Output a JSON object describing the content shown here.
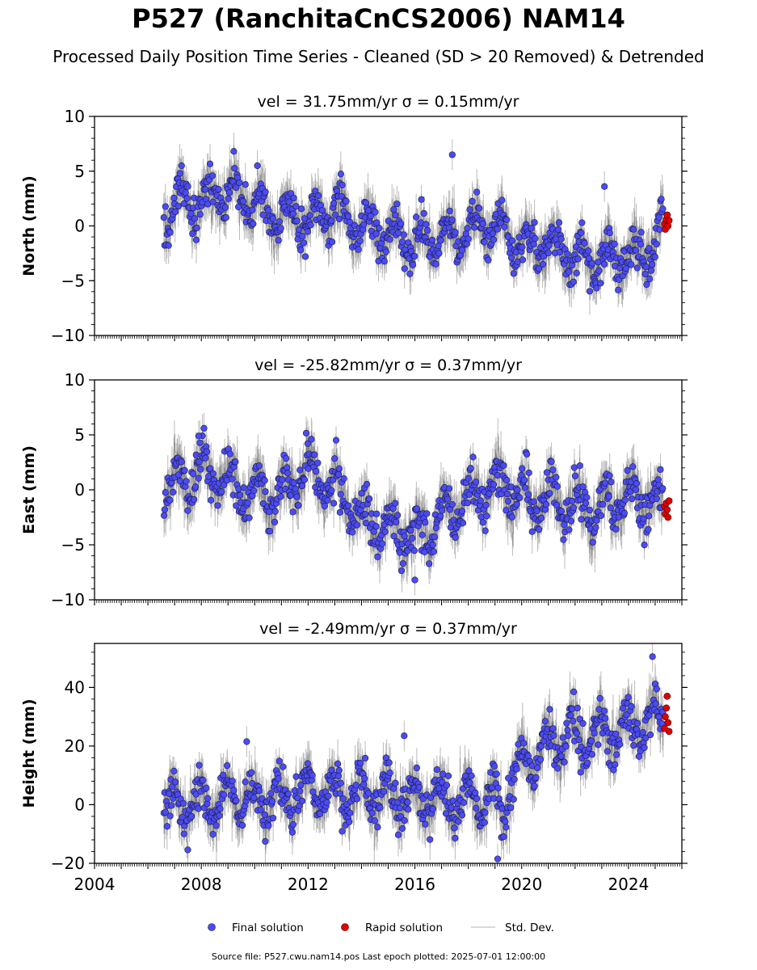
{
  "title": "P527 (RanchitaCnCS2006) NAM14",
  "subtitle": "Processed Daily Position Time Series - Cleaned (SD > 20 Removed) & Detrended",
  "source_text": "Source file: P527.cwu.nam14.pos  Last epoch plotted: 2025-07-01 12:00:00",
  "colors": {
    "final": "#4b4bf5",
    "final_edge": "#1a1a3a",
    "rapid": "#e00000",
    "stddev": "#bbbbbb",
    "stddev_dark": "#555555"
  },
  "legend": {
    "final": "Final solution",
    "rapid": "Rapid solution",
    "stddev": "Std. Dev."
  },
  "chart_data": [
    {
      "type": "scatter",
      "component": "north",
      "title": "vel = 31.75mm/yr   σ = 0.15mm/yr",
      "ylabel": "North (mm)",
      "xlim": [
        2004.0,
        2026.0
      ],
      "ylim": [
        -10,
        10
      ],
      "yticks": [
        -10,
        -5,
        0,
        5,
        10
      ],
      "ytick_labels": [
        "−10",
        "−5",
        "0",
        "5",
        "10"
      ],
      "xticks": [
        2004,
        2008,
        2012,
        2016,
        2020,
        2024
      ],
      "show_xtick_labels": false,
      "final_trend": [
        [
          2006.6,
          1.0
        ],
        [
          2007.2,
          2.3
        ],
        [
          2008.0,
          2.0
        ],
        [
          2009.0,
          3.0
        ],
        [
          2010.0,
          1.8
        ],
        [
          2011.0,
          0.8
        ],
        [
          2012.0,
          0.6
        ],
        [
          2013.0,
          1.5
        ],
        [
          2014.0,
          0.0
        ],
        [
          2015.0,
          -0.5
        ],
        [
          2016.0,
          -1.5
        ],
        [
          2017.0,
          -1.0
        ],
        [
          2018.0,
          -0.5
        ],
        [
          2019.0,
          0.3
        ],
        [
          2020.0,
          -1.8
        ],
        [
          2021.0,
          -2.0
        ],
        [
          2022.0,
          -2.8
        ],
        [
          2023.0,
          -3.0
        ],
        [
          2024.0,
          -3.3
        ],
        [
          2025.0,
          -1.5
        ],
        [
          2025.3,
          0.0
        ]
      ],
      "seasonal_amplitude": 2.0,
      "outliers": [
        [
          2017.4,
          6.5
        ],
        [
          2023.1,
          3.6
        ],
        [
          2011.9,
          -2.8
        ],
        [
          2010.1,
          5.5
        ],
        [
          2007.2,
          4.8
        ]
      ],
      "rapid": [
        [
          2025.35,
          0.2
        ],
        [
          2025.38,
          -0.3
        ],
        [
          2025.42,
          0.6
        ],
        [
          2025.45,
          1.0
        ],
        [
          2025.48,
          0.0
        ],
        [
          2025.52,
          0.5
        ]
      ]
    },
    {
      "type": "scatter",
      "component": "east",
      "title": "vel = -25.82mm/yr   σ = 0.37mm/yr",
      "ylabel": "East (mm)",
      "xlim": [
        2004.0,
        2026.0
      ],
      "ylim": [
        -10,
        10
      ],
      "yticks": [
        -10,
        -5,
        0,
        5,
        10
      ],
      "ytick_labels": [
        "−10",
        "−5",
        "0",
        "5",
        "10"
      ],
      "xticks": [
        2004,
        2008,
        2012,
        2016,
        2020,
        2024
      ],
      "show_xtick_labels": false,
      "final_trend": [
        [
          2006.6,
          0.5
        ],
        [
          2008.0,
          1.5
        ],
        [
          2009.0,
          1.0
        ],
        [
          2010.0,
          -0.5
        ],
        [
          2011.0,
          -0.5
        ],
        [
          2012.0,
          2.0
        ],
        [
          2013.0,
          0.0
        ],
        [
          2014.0,
          -2.5
        ],
        [
          2015.0,
          -3.5
        ],
        [
          2016.0,
          -4.5
        ],
        [
          2017.0,
          -2.5
        ],
        [
          2018.0,
          -0.5
        ],
        [
          2019.0,
          0.5
        ],
        [
          2020.0,
          -0.5
        ],
        [
          2021.0,
          -1.0
        ],
        [
          2022.0,
          -1.5
        ],
        [
          2023.0,
          -2.0
        ],
        [
          2024.0,
          -0.5
        ],
        [
          2025.3,
          -1.2
        ]
      ],
      "seasonal_amplitude": 2.2,
      "outliers": [
        [
          2008.1,
          5.6
        ],
        [
          2016.0,
          -8.2
        ],
        [
          2007.9,
          4.9
        ]
      ],
      "rapid": [
        [
          2025.35,
          -1.5
        ],
        [
          2025.38,
          -2.2
        ],
        [
          2025.42,
          -1.2
        ],
        [
          2025.45,
          -1.8
        ],
        [
          2025.48,
          -2.5
        ],
        [
          2025.52,
          -1.0
        ]
      ]
    },
    {
      "type": "scatter",
      "component": "height",
      "title": "vel = -2.49mm/yr   σ = 0.37mm/yr",
      "ylabel": "Height (mm)",
      "xlim": [
        2004.0,
        2026.0
      ],
      "ylim": [
        -20,
        55
      ],
      "yticks": [
        -20,
        0,
        20,
        40
      ],
      "ytick_labels": [
        "−20",
        "0",
        "20",
        "40"
      ],
      "xticks": [
        2004,
        2008,
        2012,
        2016,
        2020,
        2024
      ],
      "xtick_labels": [
        "2004",
        "2008",
        "2012",
        "2016",
        "2020",
        "2024"
      ],
      "show_xtick_labels": true,
      "final_trend": [
        [
          2006.6,
          0.0
        ],
        [
          2008.0,
          2.0
        ],
        [
          2010.0,
          1.0
        ],
        [
          2012.0,
          4.0
        ],
        [
          2014.0,
          3.0
        ],
        [
          2016.0,
          2.0
        ],
        [
          2018.0,
          0.0
        ],
        [
          2019.0,
          2.0
        ],
        [
          2019.3,
          0.0
        ],
        [
          2020.0,
          14.0
        ],
        [
          2021.0,
          20.0
        ],
        [
          2022.0,
          24.0
        ],
        [
          2023.0,
          23.0
        ],
        [
          2024.0,
          26.0
        ],
        [
          2025.3,
          30.0
        ]
      ],
      "seasonal_amplitude": 8.0,
      "outliers": [
        [
          2024.9,
          50.5
        ],
        [
          2009.7,
          21.5
        ],
        [
          2015.6,
          23.5
        ],
        [
          2019.1,
          -18.5
        ]
      ],
      "rapid": [
        [
          2025.35,
          26.0
        ],
        [
          2025.38,
          30.0
        ],
        [
          2025.42,
          33.0
        ],
        [
          2025.45,
          37.0
        ],
        [
          2025.48,
          28.0
        ],
        [
          2025.52,
          25.0
        ]
      ]
    }
  ]
}
